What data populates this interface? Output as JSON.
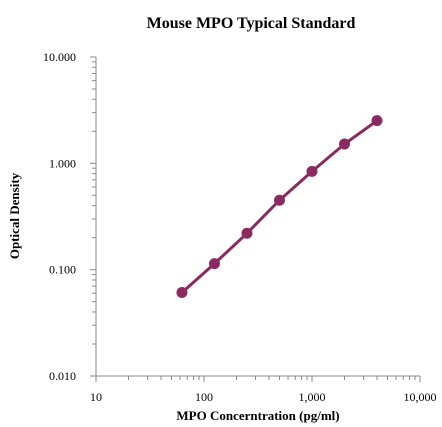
{
  "chart_data": {
    "type": "scatter",
    "title": "Mouse MPO Typical Standard",
    "xlabel": "MPO Concerntration (pg/ml)",
    "ylabel": "Optical Density",
    "x_scale": "log",
    "y_scale": "log",
    "xlim": [
      10,
      10000
    ],
    "ylim": [
      0.01,
      10
    ],
    "x_ticks": [
      {
        "value": 10,
        "label": "10"
      },
      {
        "value": 100,
        "label": "100"
      },
      {
        "value": 1000,
        "label": "1,000"
      },
      {
        "value": 10000,
        "label": "10,000"
      }
    ],
    "y_ticks": [
      {
        "value": 0.01,
        "label": "0.010"
      },
      {
        "value": 0.1,
        "label": "0.100"
      },
      {
        "value": 1,
        "label": "1.000"
      },
      {
        "value": 10,
        "label": "10.000"
      }
    ],
    "grid": false,
    "legend": "none",
    "color": "#8B2A5E",
    "series": [
      {
        "x": [
          62.5,
          125,
          250,
          500,
          1000,
          2000,
          4000
        ],
        "y": [
          0.061,
          0.114,
          0.22,
          0.45,
          0.84,
          1.52,
          2.52
        ]
      }
    ]
  }
}
